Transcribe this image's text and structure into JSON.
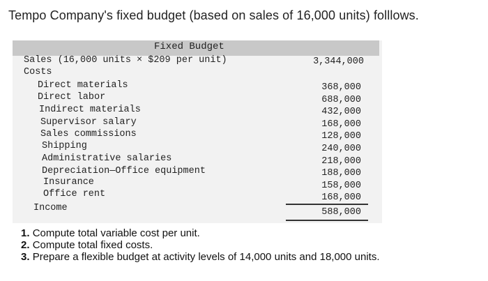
{
  "title": "Tempo Company's fixed budget (based on sales of 16,000 units) folllows.",
  "table": {
    "column_header": "Fixed Budget",
    "sales_label": "Sales (16,000 units × $209 per unit)",
    "sales_value": "3,344,000",
    "costs_label": "Costs",
    "cost_rows": [
      {
        "label": "Direct materials",
        "value": "368,000"
      },
      {
        "label": "Direct labor",
        "value": "688,000"
      },
      {
        "label": "Indirect materials",
        "value": "432,000"
      },
      {
        "label": "Supervisor salary",
        "value": "168,000"
      },
      {
        "label": "Sales commissions",
        "value": "128,000"
      },
      {
        "label": "Shipping",
        "value": "240,000"
      },
      {
        "label": "Administrative salaries",
        "value": "218,000"
      },
      {
        "label": "Depreciation—Office equipment",
        "value": "188,000"
      },
      {
        "label": "Insurance",
        "value": "158,000"
      },
      {
        "label": "Office rent",
        "value": "168,000"
      }
    ],
    "income_label": "Income",
    "income_value": "588,000"
  },
  "questions": [
    {
      "number": "1.",
      "text": "Compute total variable cost per unit."
    },
    {
      "number": "2.",
      "text": "Compute total fixed costs."
    },
    {
      "number": "3.",
      "text": "Prepare a flexible budget at activity levels of 14,000 units and 18,000 units."
    }
  ]
}
